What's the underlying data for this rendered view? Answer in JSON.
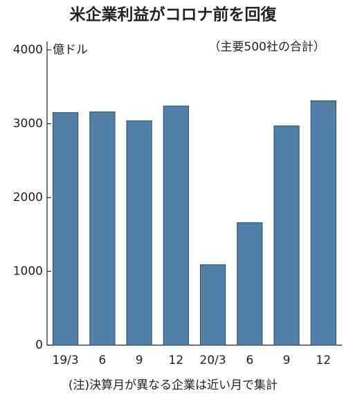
{
  "chart_data": {
    "type": "bar",
    "title": "米企業利益がコロナ前を回復",
    "subtitle": "（主要500社の合計）",
    "y_label": "億ドル",
    "note": "(注)決算月が異なる企業は近い月で集計",
    "categories": [
      "19/3",
      "6",
      "9",
      "12",
      "20/3",
      "6",
      "9",
      "12"
    ],
    "values": [
      3150,
      3160,
      3040,
      3240,
      1090,
      1660,
      2970,
      3310
    ],
    "color": "#4f81a8",
    "ylim": [
      0,
      4000
    ],
    "yticks": [
      0,
      1000,
      2000,
      3000,
      4000
    ],
    "grid": false
  }
}
